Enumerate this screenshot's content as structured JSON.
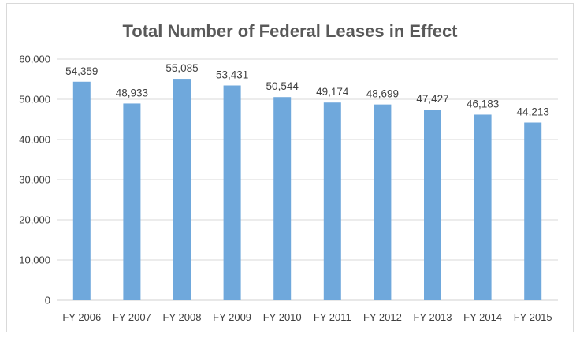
{
  "chart_data": {
    "type": "bar",
    "title": "Total Number of Federal Leases in Effect",
    "categories": [
      "FY 2006",
      "FY 2007",
      "FY 2008",
      "FY 2009",
      "FY 2010",
      "FY 2011",
      "FY 2012",
      "FY 2013",
      "FY 2014",
      "FY 2015"
    ],
    "values": [
      54359,
      48933,
      55085,
      53431,
      50544,
      49174,
      48699,
      47427,
      46183,
      44213
    ],
    "data_labels": [
      "54,359",
      "48,933",
      "55,085",
      "53,431",
      "50,544",
      "49,174",
      "48,699",
      "47,427",
      "46,183",
      "44,213"
    ],
    "y_ticks": [
      0,
      10000,
      20000,
      30000,
      40000,
      50000,
      60000
    ],
    "y_tick_labels": [
      "0",
      "10,000",
      "20,000",
      "30,000",
      "40,000",
      "50,000",
      "60,000"
    ],
    "ylim": [
      0,
      60000
    ],
    "xlabel": "",
    "ylabel": "",
    "grid": true,
    "legend": "none",
    "bar_color": "#6fa8dc",
    "grid_color": "#d9d9d9"
  }
}
